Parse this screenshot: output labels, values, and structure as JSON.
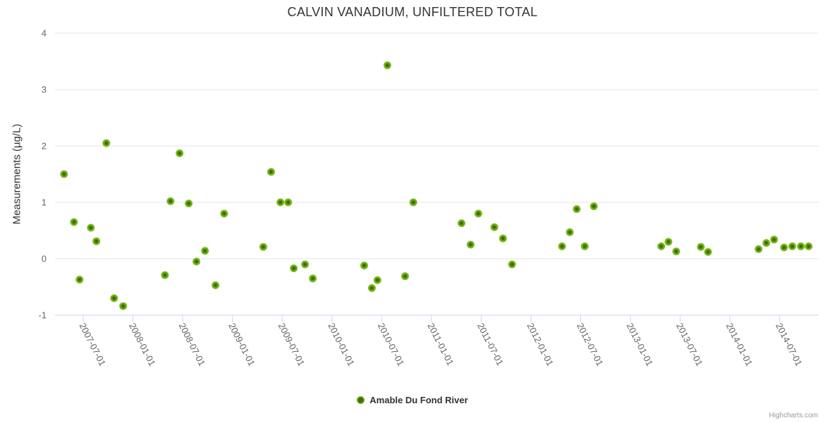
{
  "credits": {
    "label": "Highcharts.com"
  },
  "colors": {
    "marker_outer": "#7db51a",
    "marker_inner": "#3a6d08",
    "grid_line": "#e6e6e6",
    "axis_line": "#ccd6eb",
    "tick_label": "#666666",
    "title_text": "#333333"
  },
  "chart_data": {
    "type": "scatter",
    "title": "CALVIN VANADIUM, UNFILTERED TOTAL",
    "xlabel": "",
    "ylabel": "Measurements (µg/L)",
    "ylim": [
      -1,
      4
    ],
    "yticks": [
      4,
      3,
      2,
      1,
      0,
      -1
    ],
    "xticks": [
      "2007-07-01",
      "2008-01-01",
      "2008-07-01",
      "2009-01-01",
      "2009-07-01",
      "2010-01-01",
      "2010-07-01",
      "2011-01-01",
      "2011-07-01",
      "2012-01-01",
      "2012-07-01",
      "2013-01-01",
      "2013-07-01",
      "2014-01-01",
      "2014-07-01"
    ],
    "grid": "horizontal-only",
    "legend_position": "bottom-center",
    "series": [
      {
        "name": "Amable Du Fond River",
        "color": "#7db51a",
        "points": [
          {
            "x": "2007-04-22",
            "y": 1.5
          },
          {
            "x": "2007-05-28",
            "y": 0.65
          },
          {
            "x": "2007-06-18",
            "y": -0.37
          },
          {
            "x": "2007-07-29",
            "y": 0.55
          },
          {
            "x": "2007-08-19",
            "y": 0.31
          },
          {
            "x": "2007-09-25",
            "y": 2.05
          },
          {
            "x": "2007-10-23",
            "y": -0.7
          },
          {
            "x": "2007-11-26",
            "y": -0.84
          },
          {
            "x": "2008-04-27",
            "y": -0.29
          },
          {
            "x": "2008-05-17",
            "y": 1.02
          },
          {
            "x": "2008-06-20",
            "y": 1.87
          },
          {
            "x": "2008-07-23",
            "y": 0.98
          },
          {
            "x": "2008-08-21",
            "y": -0.05
          },
          {
            "x": "2008-09-22",
            "y": 0.14
          },
          {
            "x": "2008-10-30",
            "y": -0.47
          },
          {
            "x": "2008-12-01",
            "y": 0.8
          },
          {
            "x": "2009-04-23",
            "y": 0.21
          },
          {
            "x": "2009-05-21",
            "y": 1.54
          },
          {
            "x": "2009-06-25",
            "y": 1.0
          },
          {
            "x": "2009-07-23",
            "y": 1.0
          },
          {
            "x": "2009-08-13",
            "y": -0.17
          },
          {
            "x": "2009-09-24",
            "y": -0.1
          },
          {
            "x": "2009-10-22",
            "y": -0.35
          },
          {
            "x": "2010-04-28",
            "y": -0.12
          },
          {
            "x": "2010-05-26",
            "y": -0.52
          },
          {
            "x": "2010-06-16",
            "y": -0.38
          },
          {
            "x": "2010-07-22",
            "y": 3.43
          },
          {
            "x": "2010-09-26",
            "y": -0.31
          },
          {
            "x": "2010-10-26",
            "y": 1.0
          },
          {
            "x": "2011-04-20",
            "y": 0.63
          },
          {
            "x": "2011-05-23",
            "y": 0.25
          },
          {
            "x": "2011-06-21",
            "y": 0.8
          },
          {
            "x": "2011-08-19",
            "y": 0.56
          },
          {
            "x": "2011-09-20",
            "y": 0.36
          },
          {
            "x": "2011-10-23",
            "y": -0.1
          },
          {
            "x": "2012-04-24",
            "y": 0.22
          },
          {
            "x": "2012-05-22",
            "y": 0.47
          },
          {
            "x": "2012-06-17",
            "y": 0.88
          },
          {
            "x": "2012-07-16",
            "y": 0.22
          },
          {
            "x": "2012-08-19",
            "y": 0.93
          },
          {
            "x": "2013-04-23",
            "y": 0.22
          },
          {
            "x": "2013-05-19",
            "y": 0.3
          },
          {
            "x": "2013-06-17",
            "y": 0.13
          },
          {
            "x": "2013-09-16",
            "y": 0.21
          },
          {
            "x": "2013-10-12",
            "y": 0.12
          },
          {
            "x": "2014-04-15",
            "y": 0.17
          },
          {
            "x": "2014-05-13",
            "y": 0.28
          },
          {
            "x": "2014-06-11",
            "y": 0.34
          },
          {
            "x": "2014-07-17",
            "y": 0.2
          },
          {
            "x": "2014-08-17",
            "y": 0.22
          },
          {
            "x": "2014-09-18",
            "y": 0.22
          },
          {
            "x": "2014-10-16",
            "y": 0.22
          }
        ]
      }
    ]
  }
}
